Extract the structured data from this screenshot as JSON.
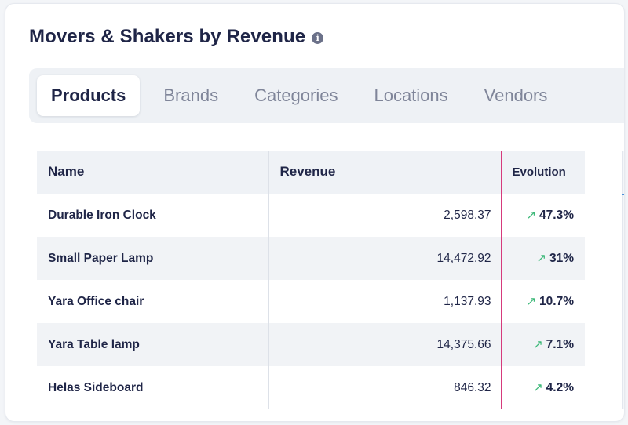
{
  "widget": {
    "title": "Movers & Shakers by Revenue",
    "info_icon": "info-icon"
  },
  "tabs": [
    {
      "label": "Products",
      "active": true
    },
    {
      "label": "Brands",
      "active": false
    },
    {
      "label": "Categories",
      "active": false
    },
    {
      "label": "Locations",
      "active": false
    },
    {
      "label": "Vendors",
      "active": false
    }
  ],
  "table": {
    "headers": {
      "name": "Name",
      "revenue": "Revenue",
      "evolution": "Evolution"
    },
    "rows": [
      {
        "name": "Durable Iron Clock",
        "revenue": "2,598.37",
        "evolution": "47.3%",
        "trend": "up"
      },
      {
        "name": "Small Paper Lamp",
        "revenue": "14,472.92",
        "evolution": "31%",
        "trend": "up"
      },
      {
        "name": "Yara Office chair",
        "revenue": "1,137.93",
        "evolution": "10.7%",
        "trend": "up"
      },
      {
        "name": "Yara Table lamp",
        "revenue": "14,375.66",
        "evolution": "7.1%",
        "trend": "up"
      },
      {
        "name": "Helas Sideboard",
        "revenue": "846.32",
        "evolution": "4.2%",
        "trend": "up"
      }
    ]
  },
  "colors": {
    "accent_blue": "#4a90d9",
    "column_marker": "#d63a7c",
    "trend_up": "#3cb878"
  }
}
